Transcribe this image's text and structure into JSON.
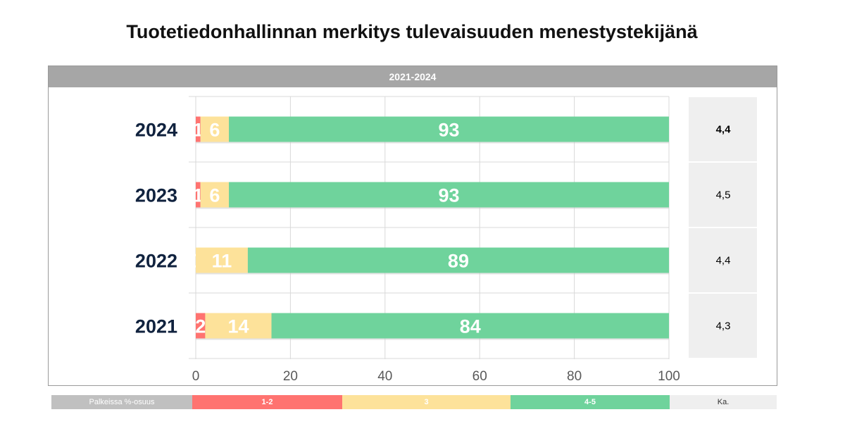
{
  "title": "Tuotetiedonhallinnan merkitys tulevaisuuden menestystekijänä",
  "panel_header": "2021-2024",
  "chart_data": {
    "type": "bar",
    "orientation": "horizontal",
    "stacked": true,
    "categories": [
      "2024",
      "2023",
      "2022",
      "2021"
    ],
    "series": [
      {
        "name": "1-2",
        "values": [
          1,
          1,
          0,
          2
        ],
        "color": "#ff7370"
      },
      {
        "name": "3",
        "values": [
          6,
          6,
          11,
          14
        ],
        "color": "#fde29a"
      },
      {
        "name": "4-5",
        "values": [
          93,
          93,
          89,
          84
        ],
        "color": "#6fd39c"
      }
    ],
    "averages": [
      "4,4",
      "4,5",
      "4,4",
      "4,3"
    ],
    "xlim": [
      0,
      100
    ],
    "xticks": [
      "0",
      "20",
      "40",
      "60",
      "80",
      "100"
    ],
    "grid": true
  },
  "legend": {
    "label": "Palkeissa %-osuus",
    "low": "1-2",
    "mid": "3",
    "high": "4-5",
    "avg": "Ka."
  }
}
